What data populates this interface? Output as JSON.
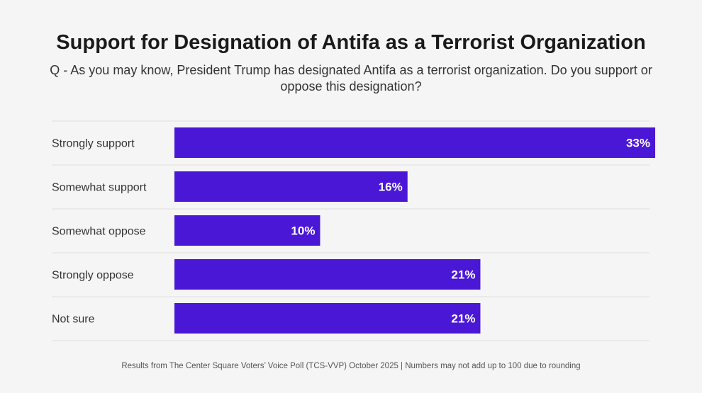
{
  "chart_data": {
    "type": "bar",
    "orientation": "horizontal",
    "title": "Support for Designation of Antifa as a Terrorist Organization",
    "subtitle": "Q - As you may know, President Trump has designated Antifa as a terrorist organization. Do you support or oppose this designation?",
    "categories": [
      "Strongly support",
      "Somewhat support",
      "Somewhat oppose",
      "Strongly oppose",
      "Not sure"
    ],
    "values": [
      33,
      16,
      10,
      21,
      21
    ],
    "data_labels": [
      "33%",
      "16%",
      "10%",
      "21%",
      "21%"
    ],
    "xlim": [
      0,
      33
    ],
    "unit": "%",
    "grid": false,
    "bar_color": "#4a17d6",
    "label_color": "#ffffff",
    "footer": "Results from The Center Square Voters’ Voice Poll (TCS-VVP) October 2025 | Numbers may not add up to 100 due to rounding"
  }
}
